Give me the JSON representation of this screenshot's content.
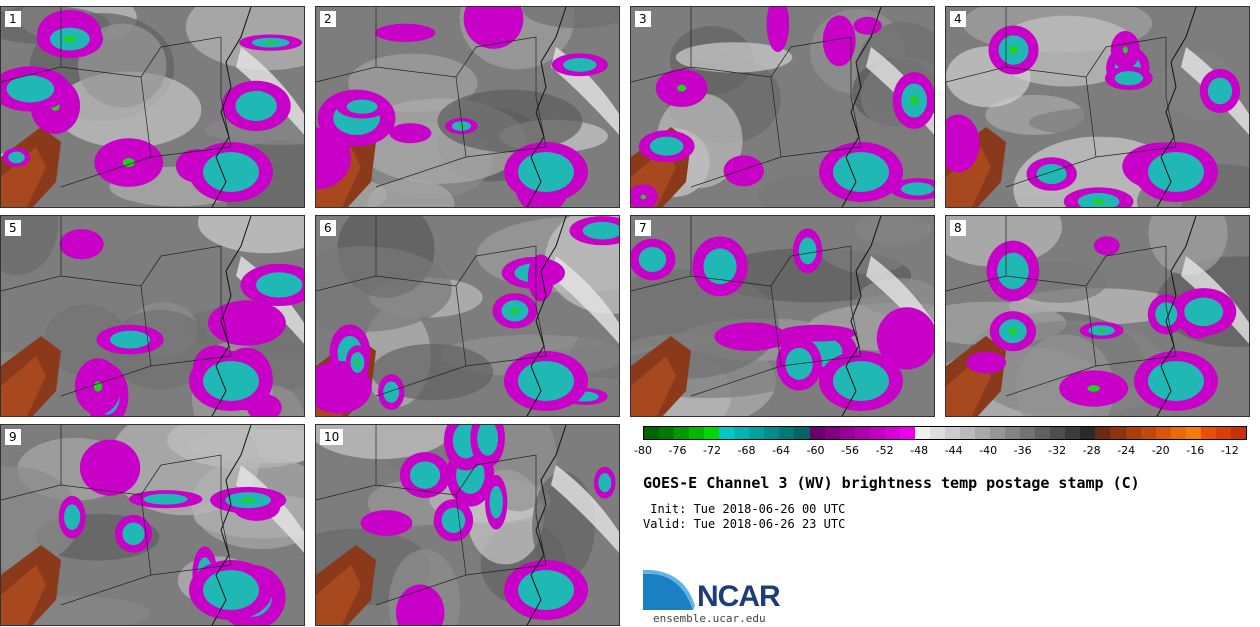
{
  "panels": [
    {
      "label": "1"
    },
    {
      "label": "2"
    },
    {
      "label": "3"
    },
    {
      "label": "4"
    },
    {
      "label": "5"
    },
    {
      "label": "6"
    },
    {
      "label": "7"
    },
    {
      "label": "8"
    },
    {
      "label": "9"
    },
    {
      "label": "10"
    }
  ],
  "colorbar": {
    "ticks": [
      "-80",
      "-76",
      "-72",
      "-68",
      "-64",
      "-60",
      "-56",
      "-52",
      "-48",
      "-44",
      "-40",
      "-36",
      "-32",
      "-28",
      "-24",
      "-20",
      "-16",
      "-12"
    ],
    "colors": [
      "#006400",
      "#007a00",
      "#009900",
      "#00b800",
      "#00d600",
      "#00c8c8",
      "#00b4b4",
      "#00a0a0",
      "#008c8c",
      "#007878",
      "#006464",
      "#6a006a",
      "#800080",
      "#960096",
      "#ac00ac",
      "#c200c2",
      "#d800d8",
      "#ee00ee",
      "#f0f0f0",
      "#dedede",
      "#cccccc",
      "#bababa",
      "#a8a8a8",
      "#969696",
      "#848484",
      "#727272",
      "#606060",
      "#4e4e4e",
      "#3c3c3c",
      "#2a2a2a",
      "#6b2a12",
      "#8a3410",
      "#a8400e",
      "#c04a0c",
      "#d8560a",
      "#e86a0a",
      "#f07c0c",
      "#e8500a",
      "#d8400a",
      "#c83008"
    ]
  },
  "header": {
    "title": "GOES-E Channel 3 (WV) brightness temp postage stamp (C)",
    "init": " Init: Tue 2018-06-26 00 UTC",
    "valid": "Valid: Tue 2018-06-26 23 UTC"
  },
  "logo": {
    "text": "NCAR",
    "url": "ensemble.ucar.edu"
  }
}
